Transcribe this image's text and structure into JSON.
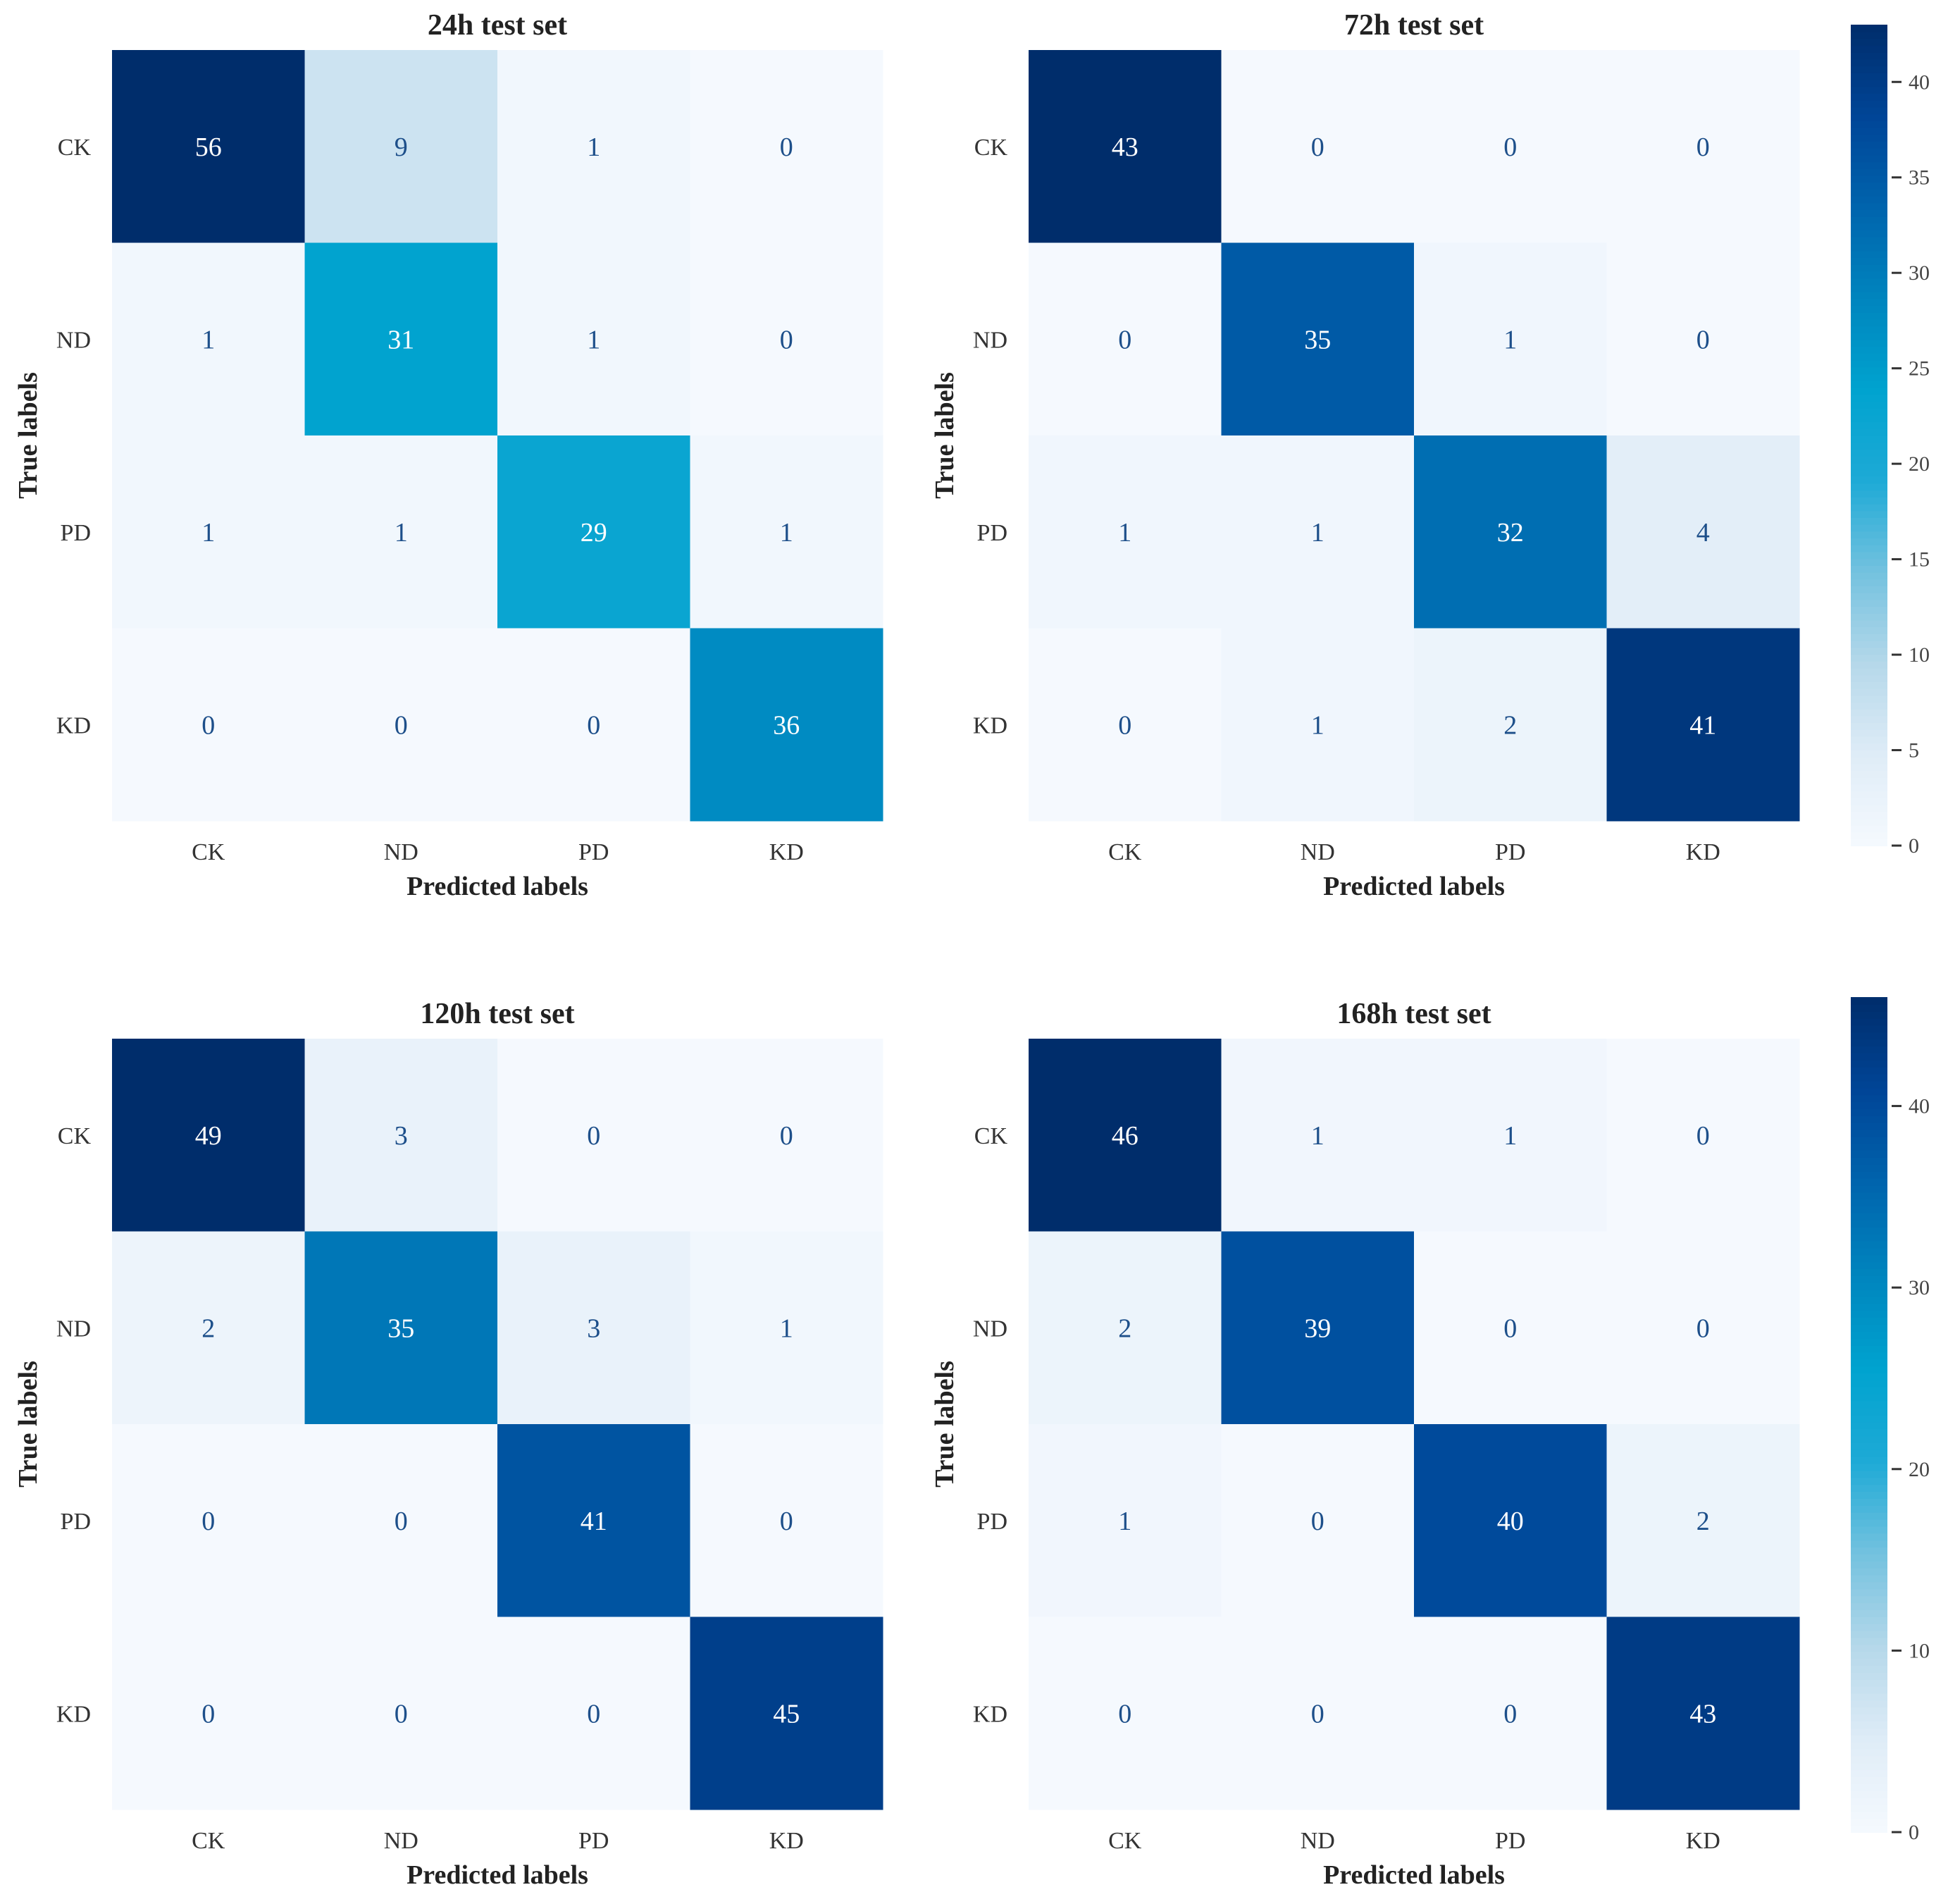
{
  "chart_data": [
    {
      "type": "heatmap",
      "title": "24h test set",
      "xlabel": "Predicted labels",
      "ylabel": "True labels",
      "x_categories": [
        "CK",
        "ND",
        "PD",
        "KD"
      ],
      "y_categories": [
        "CK",
        "ND",
        "PD",
        "KD"
      ],
      "values": [
        [
          56,
          9,
          1,
          0
        ],
        [
          1,
          31,
          1,
          0
        ],
        [
          1,
          1,
          29,
          1
        ],
        [
          0,
          0,
          0,
          36
        ]
      ],
      "vmax": 56
    },
    {
      "type": "heatmap",
      "title": "72h test set",
      "xlabel": "Predicted labels",
      "ylabel": "True labels",
      "x_categories": [
        "CK",
        "ND",
        "PD",
        "KD"
      ],
      "y_categories": [
        "CK",
        "ND",
        "PD",
        "KD"
      ],
      "values": [
        [
          43,
          0,
          0,
          0
        ],
        [
          0,
          35,
          1,
          0
        ],
        [
          1,
          1,
          32,
          4
        ],
        [
          0,
          1,
          2,
          41
        ]
      ],
      "vmax": 43,
      "colorbar": {
        "ticks": [
          0,
          5,
          10,
          15,
          20,
          25,
          30,
          35,
          40
        ],
        "range": [
          0,
          43
        ]
      }
    },
    {
      "type": "heatmap",
      "title": "120h test set",
      "xlabel": "Predicted labels",
      "ylabel": "True labels",
      "x_categories": [
        "CK",
        "ND",
        "PD",
        "KD"
      ],
      "y_categories": [
        "CK",
        "ND",
        "PD",
        "KD"
      ],
      "values": [
        [
          49,
          3,
          0,
          0
        ],
        [
          2,
          35,
          3,
          1
        ],
        [
          0,
          0,
          41,
          0
        ],
        [
          0,
          0,
          0,
          45
        ]
      ],
      "vmax": 49
    },
    {
      "type": "heatmap",
      "title": "168h test set",
      "xlabel": "Predicted labels",
      "ylabel": "True labels",
      "x_categories": [
        "CK",
        "ND",
        "PD",
        "KD"
      ],
      "y_categories": [
        "CK",
        "ND",
        "PD",
        "KD"
      ],
      "values": [
        [
          46,
          1,
          1,
          0
        ],
        [
          2,
          39,
          0,
          0
        ],
        [
          1,
          0,
          40,
          2
        ],
        [
          0,
          0,
          0,
          43
        ]
      ],
      "vmax": 46,
      "colorbar": {
        "ticks": [
          0,
          10,
          20,
          30,
          40
        ],
        "range": [
          0,
          46
        ]
      }
    }
  ],
  "colormap": [
    "#f5f9fe",
    "#dfecf7",
    "#b5d8ea",
    "#74c2df",
    "#1eaad6",
    "#00a3cf",
    "#0085be",
    "#0064ad",
    "#004597",
    "#002d6b"
  ]
}
